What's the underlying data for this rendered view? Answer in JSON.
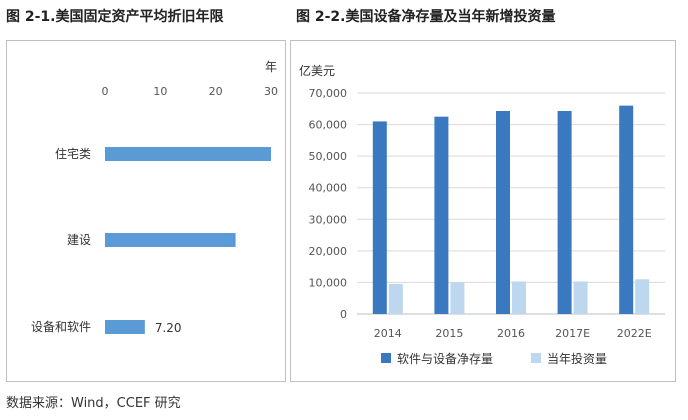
{
  "titles": {
    "left": "图 2-1.美国固定资产平均折旧年限",
    "right": "图 2-2.美国设备净存量及当年新增投资量"
  },
  "source": "数据来源：Wind，CCEF 研究",
  "colors": {
    "bar_dark": "#3a78c0",
    "bar_light": "#bdd7ee",
    "bar_left": "#5b9bd5",
    "grid": "#d9d9d9",
    "axis": "#bfbfbf"
  },
  "chart_data": [
    {
      "type": "bar",
      "orientation": "horizontal",
      "unit_label": "年",
      "xlim": [
        0,
        30
      ],
      "xticks": [
        "0",
        "10",
        "20",
        "30"
      ],
      "categories": [
        "住宅类",
        "建设",
        "设备和软件"
      ],
      "values": [
        30.0,
        23.6,
        7.2
      ],
      "data_labels": [
        "",
        "",
        "7.20"
      ]
    },
    {
      "type": "bar",
      "unit_label": "亿美元",
      "ylim": [
        0,
        70000
      ],
      "yticks": [
        "0",
        "10,000",
        "20,000",
        "30,000",
        "40,000",
        "50,000",
        "60,000",
        "70,000"
      ],
      "categories": [
        "2014",
        "2015",
        "2016",
        "2017E",
        "2022E"
      ],
      "series": [
        {
          "name": "软件与设备净存量",
          "values": [
            61000,
            62500,
            64300,
            64300,
            66000
          ]
        },
        {
          "name": "当年投资量",
          "values": [
            9500,
            10000,
            10300,
            10300,
            11000
          ]
        }
      ],
      "legend": "bottom",
      "grid": true
    }
  ]
}
